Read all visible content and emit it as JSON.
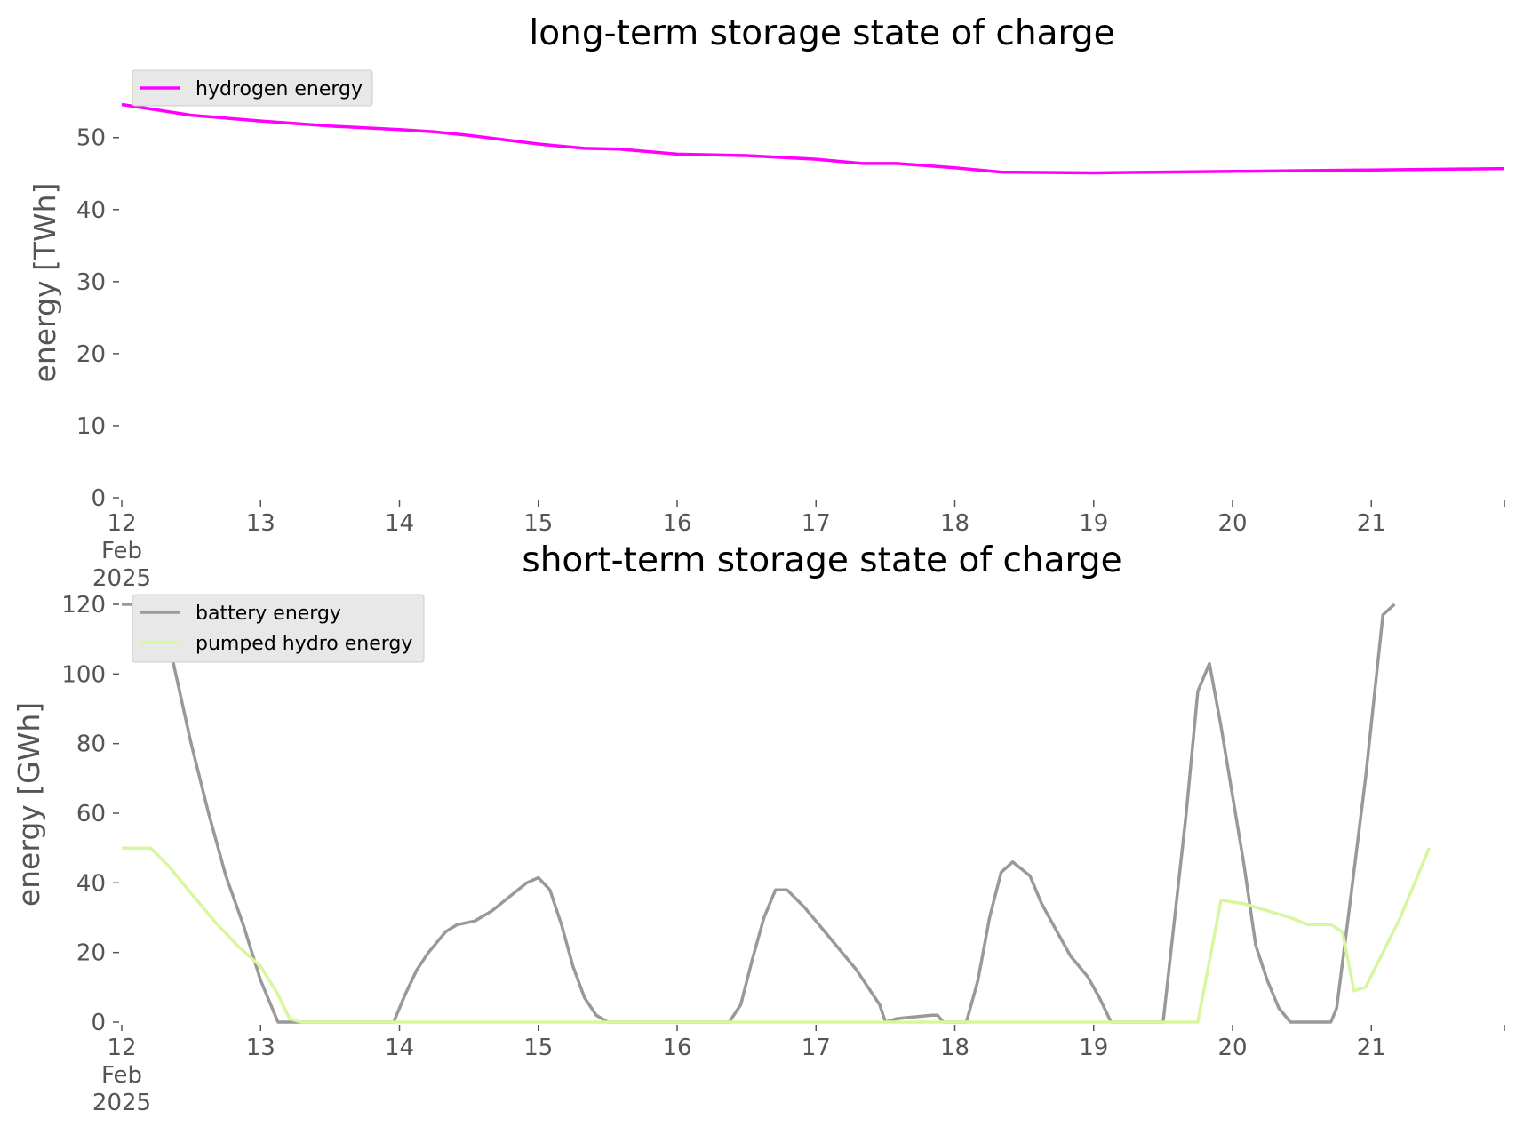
{
  "chart_data": [
    {
      "type": "line",
      "title": "long-term storage state of charge",
      "ylabel": "energy [TWh]",
      "xlabel": "",
      "xlim": [
        "2025-02-12 00:00",
        "2025-02-21 23:00"
      ],
      "ylim": [
        0,
        57
      ],
      "yticks": [
        0,
        10,
        20,
        30,
        40,
        50
      ],
      "xticks": [
        {
          "date": "2025-02-12",
          "label": [
            "12",
            "Feb",
            "2025"
          ]
        },
        {
          "date": "2025-02-13",
          "label": [
            "13"
          ]
        },
        {
          "date": "2025-02-14",
          "label": [
            "14"
          ]
        },
        {
          "date": "2025-02-15",
          "label": [
            "15"
          ]
        },
        {
          "date": "2025-02-16",
          "label": [
            "16"
          ]
        },
        {
          "date": "2025-02-17",
          "label": [
            "17"
          ]
        },
        {
          "date": "2025-02-18",
          "label": [
            "18"
          ]
        },
        {
          "date": "2025-02-19",
          "label": [
            "19"
          ]
        },
        {
          "date": "2025-02-20",
          "label": [
            "20"
          ]
        },
        {
          "date": "2025-02-21",
          "label": [
            "21"
          ]
        }
      ],
      "grid": false,
      "legend_position": "top-left",
      "series": [
        {
          "name": "hydrogen energy",
          "color": "#ff00ff",
          "points": [
            [
              "2025-02-12 00:00",
              54.6
            ],
            [
              "2025-02-12 12:00",
              53.1
            ],
            [
              "2025-02-13 00:00",
              52.3
            ],
            [
              "2025-02-13 12:00",
              51.6
            ],
            [
              "2025-02-14 00:00",
              51.1
            ],
            [
              "2025-02-14 06:00",
              50.8
            ],
            [
              "2025-02-14 12:00",
              50.3
            ],
            [
              "2025-02-15 00:00",
              49.1
            ],
            [
              "2025-02-15 08:00",
              48.5
            ],
            [
              "2025-02-15 14:00",
              48.4
            ],
            [
              "2025-02-16 00:00",
              47.7
            ],
            [
              "2025-02-16 12:00",
              47.5
            ],
            [
              "2025-02-17 00:00",
              47.0
            ],
            [
              "2025-02-17 08:00",
              46.4
            ],
            [
              "2025-02-17 14:00",
              46.4
            ],
            [
              "2025-02-18 00:00",
              45.8
            ],
            [
              "2025-02-18 08:00",
              45.2
            ],
            [
              "2025-02-19 00:00",
              45.1
            ],
            [
              "2025-02-19 12:00",
              45.2
            ],
            [
              "2025-02-20 00:00",
              45.3
            ],
            [
              "2025-02-20 12:00",
              45.4
            ],
            [
              "2025-02-21 00:00",
              45.5
            ],
            [
              "2025-02-21 12:00",
              45.6
            ],
            [
              "2025-02-21 23:00",
              45.7
            ]
          ]
        }
      ]
    },
    {
      "type": "line",
      "title": "short-term storage state of charge",
      "ylabel": "energy [GWh]",
      "xlabel": "",
      "xlim": [
        "2025-02-12 00:00",
        "2025-02-21 23:00"
      ],
      "ylim": [
        0,
        120
      ],
      "yticks": [
        0,
        20,
        40,
        60,
        80,
        100,
        120
      ],
      "xticks": [
        {
          "date": "2025-02-12",
          "label": [
            "12",
            "Feb",
            "2025"
          ]
        },
        {
          "date": "2025-02-13",
          "label": [
            "13"
          ]
        },
        {
          "date": "2025-02-14",
          "label": [
            "14"
          ]
        },
        {
          "date": "2025-02-15",
          "label": [
            "15"
          ]
        },
        {
          "date": "2025-02-16",
          "label": [
            "16"
          ]
        },
        {
          "date": "2025-02-17",
          "label": [
            "17"
          ]
        },
        {
          "date": "2025-02-18",
          "label": [
            "18"
          ]
        },
        {
          "date": "2025-02-19",
          "label": [
            "19"
          ]
        },
        {
          "date": "2025-02-20",
          "label": [
            "20"
          ]
        },
        {
          "date": "2025-02-21",
          "label": [
            "21"
          ]
        }
      ],
      "grid": false,
      "legend_position": "top-left",
      "series": [
        {
          "name": "battery energy",
          "color": "#999999",
          "points": [
            [
              "2025-02-12 00:00",
              120
            ],
            [
              "2025-02-12 05:00",
              120
            ],
            [
              "2025-02-12 08:00",
              110
            ],
            [
              "2025-02-12 12:00",
              80
            ],
            [
              "2025-02-12 15:00",
              60
            ],
            [
              "2025-02-12 18:00",
              42
            ],
            [
              "2025-02-12 21:00",
              28
            ],
            [
              "2025-02-13 00:00",
              12
            ],
            [
              "2025-02-13 03:00",
              0
            ],
            [
              "2025-02-13 23:00",
              0
            ],
            [
              "2025-02-14 01:00",
              8
            ],
            [
              "2025-02-14 03:00",
              15
            ],
            [
              "2025-02-14 05:00",
              20
            ],
            [
              "2025-02-14 08:00",
              26
            ],
            [
              "2025-02-14 10:00",
              28
            ],
            [
              "2025-02-14 13:00",
              29
            ],
            [
              "2025-02-14 16:00",
              32
            ],
            [
              "2025-02-14 19:00",
              36
            ],
            [
              "2025-02-14 22:00",
              40
            ],
            [
              "2025-02-15 00:00",
              41.5
            ],
            [
              "2025-02-15 02:00",
              38
            ],
            [
              "2025-02-15 04:00",
              28
            ],
            [
              "2025-02-15 06:00",
              16
            ],
            [
              "2025-02-15 08:00",
              7
            ],
            [
              "2025-02-15 10:00",
              2
            ],
            [
              "2025-02-15 12:00",
              0
            ],
            [
              "2025-02-16 09:00",
              0
            ],
            [
              "2025-02-16 11:00",
              5
            ],
            [
              "2025-02-16 13:00",
              18
            ],
            [
              "2025-02-16 15:00",
              30
            ],
            [
              "2025-02-16 17:00",
              38
            ],
            [
              "2025-02-16 19:00",
              38
            ],
            [
              "2025-02-16 22:00",
              33
            ],
            [
              "2025-02-17 01:00",
              27
            ],
            [
              "2025-02-17 04:00",
              21
            ],
            [
              "2025-02-17 07:00",
              15
            ],
            [
              "2025-02-17 09:00",
              10
            ],
            [
              "2025-02-17 11:00",
              5
            ],
            [
              "2025-02-17 12:00",
              0
            ],
            [
              "2025-02-17 14:00",
              1
            ],
            [
              "2025-02-17 17:00",
              1.5
            ],
            [
              "2025-02-17 20:00",
              2
            ],
            [
              "2025-02-17 21:00",
              2
            ],
            [
              "2025-02-17 22:00",
              0
            ],
            [
              "2025-02-18 02:00",
              0
            ],
            [
              "2025-02-18 04:00",
              12
            ],
            [
              "2025-02-18 06:00",
              30
            ],
            [
              "2025-02-18 08:00",
              43
            ],
            [
              "2025-02-18 10:00",
              46
            ],
            [
              "2025-02-18 13:00",
              42
            ],
            [
              "2025-02-18 15:00",
              34
            ],
            [
              "2025-02-18 18:00",
              25
            ],
            [
              "2025-02-18 20:00",
              19
            ],
            [
              "2025-02-18 23:00",
              13
            ],
            [
              "2025-02-19 01:00",
              7
            ],
            [
              "2025-02-19 03:00",
              0
            ],
            [
              "2025-02-19 06:00",
              0
            ],
            [
              "2025-02-19 07:00",
              0
            ],
            [
              "2025-02-19 12:00",
              0
            ],
            [
              "2025-02-19 14:00",
              30
            ],
            [
              "2025-02-19 16:00",
              60
            ],
            [
              "2025-02-19 18:00",
              95
            ],
            [
              "2025-02-19 20:00",
              103
            ],
            [
              "2025-02-19 22:00",
              85
            ],
            [
              "2025-02-20 00:00",
              65
            ],
            [
              "2025-02-20 02:00",
              45
            ],
            [
              "2025-02-20 04:00",
              22
            ],
            [
              "2025-02-20 06:00",
              12
            ],
            [
              "2025-02-20 08:00",
              4
            ],
            [
              "2025-02-20 10:00",
              0
            ],
            [
              "2025-02-20 17:00",
              0
            ],
            [
              "2025-02-20 18:00",
              4
            ],
            [
              "2025-02-20 20:00",
              30
            ],
            [
              "2025-02-20 23:00",
              70
            ],
            [
              "2025-02-21 02:00",
              117
            ],
            [
              "2025-02-21 04:00",
              120
            ]
          ]
        },
        {
          "name": "pumped hydro energy",
          "color": "#d7f79f",
          "points": [
            [
              "2025-02-12 00:00",
              50
            ],
            [
              "2025-02-12 05:00",
              50
            ],
            [
              "2025-02-12 08:00",
              45
            ],
            [
              "2025-02-12 12:00",
              37
            ],
            [
              "2025-02-12 16:00",
              29
            ],
            [
              "2025-02-12 20:00",
              22
            ],
            [
              "2025-02-13 00:00",
              16
            ],
            [
              "2025-02-13 03:00",
              8
            ],
            [
              "2025-02-13 05:00",
              1
            ],
            [
              "2025-02-13 07:00",
              0
            ],
            [
              "2025-02-19 18:00",
              0
            ],
            [
              "2025-02-19 22:00",
              35
            ],
            [
              "2025-02-20 02:00",
              34
            ],
            [
              "2025-02-20 06:00",
              32
            ],
            [
              "2025-02-20 10:00",
              30
            ],
            [
              "2025-02-20 13:00",
              28
            ],
            [
              "2025-02-20 17:00",
              28
            ],
            [
              "2025-02-20 19:00",
              26
            ],
            [
              "2025-02-20 21:00",
              9
            ],
            [
              "2025-02-20 23:00",
              10
            ],
            [
              "2025-02-21 02:00",
              20
            ],
            [
              "2025-02-21 05:00",
              30
            ],
            [
              "2025-02-21 08:00",
              42
            ],
            [
              "2025-02-21 10:00",
              50
            ]
          ]
        }
      ]
    }
  ]
}
